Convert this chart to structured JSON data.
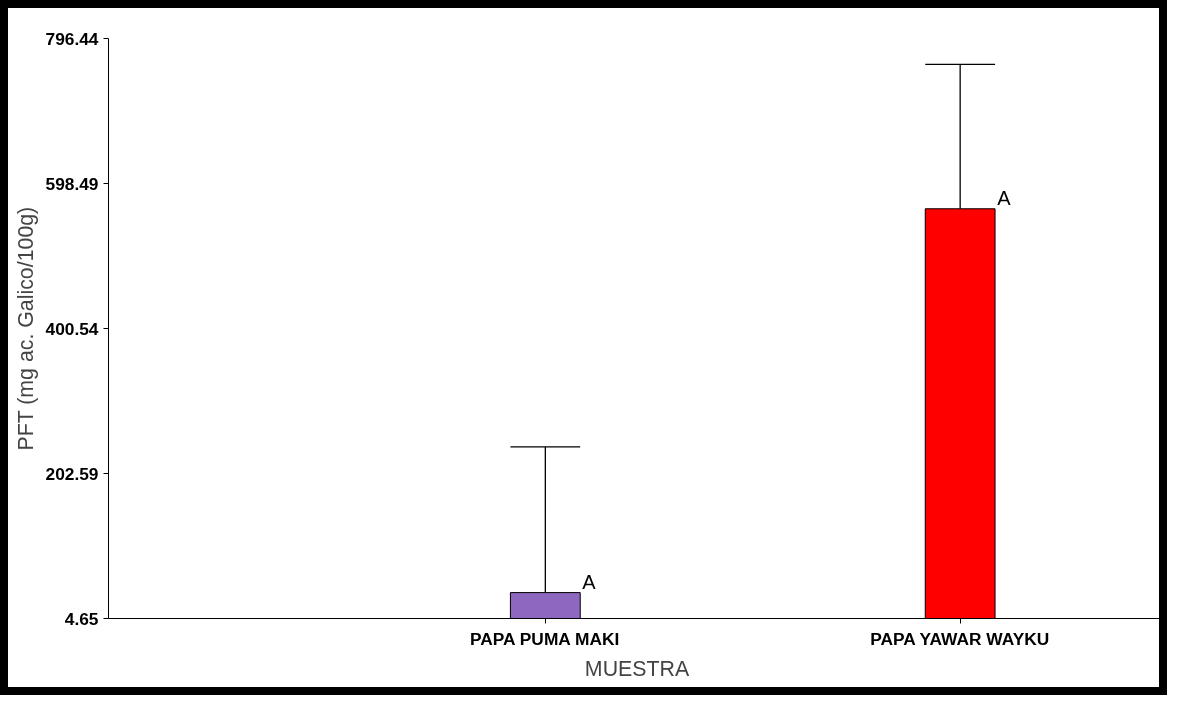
{
  "chart_data": {
    "type": "bar",
    "xlabel": "MUESTRA",
    "ylabel": "PFT (mg ac. Galico/100g)",
    "categories": [
      "PAPA PUMA MAKI",
      "PAPA YAWAR WAYKU"
    ],
    "values": [
      40,
      564
    ],
    "colors": [
      "#8e67c0",
      "#ff0000"
    ],
    "errors": [
      [
        40,
        239
      ],
      [
        564,
        761
      ]
    ],
    "ylim": [
      4.65,
      796.44
    ],
    "yticks": [
      4.65,
      202.59,
      400.54,
      598.49,
      796.44
    ],
    "grid": false,
    "annotations": [
      {
        "text": "A",
        "x": "PAPA PUMA MAKI",
        "y": 40
      },
      {
        "text": "A",
        "x": "PAPA YAWAR WAYKU",
        "y": 564
      }
    ]
  }
}
